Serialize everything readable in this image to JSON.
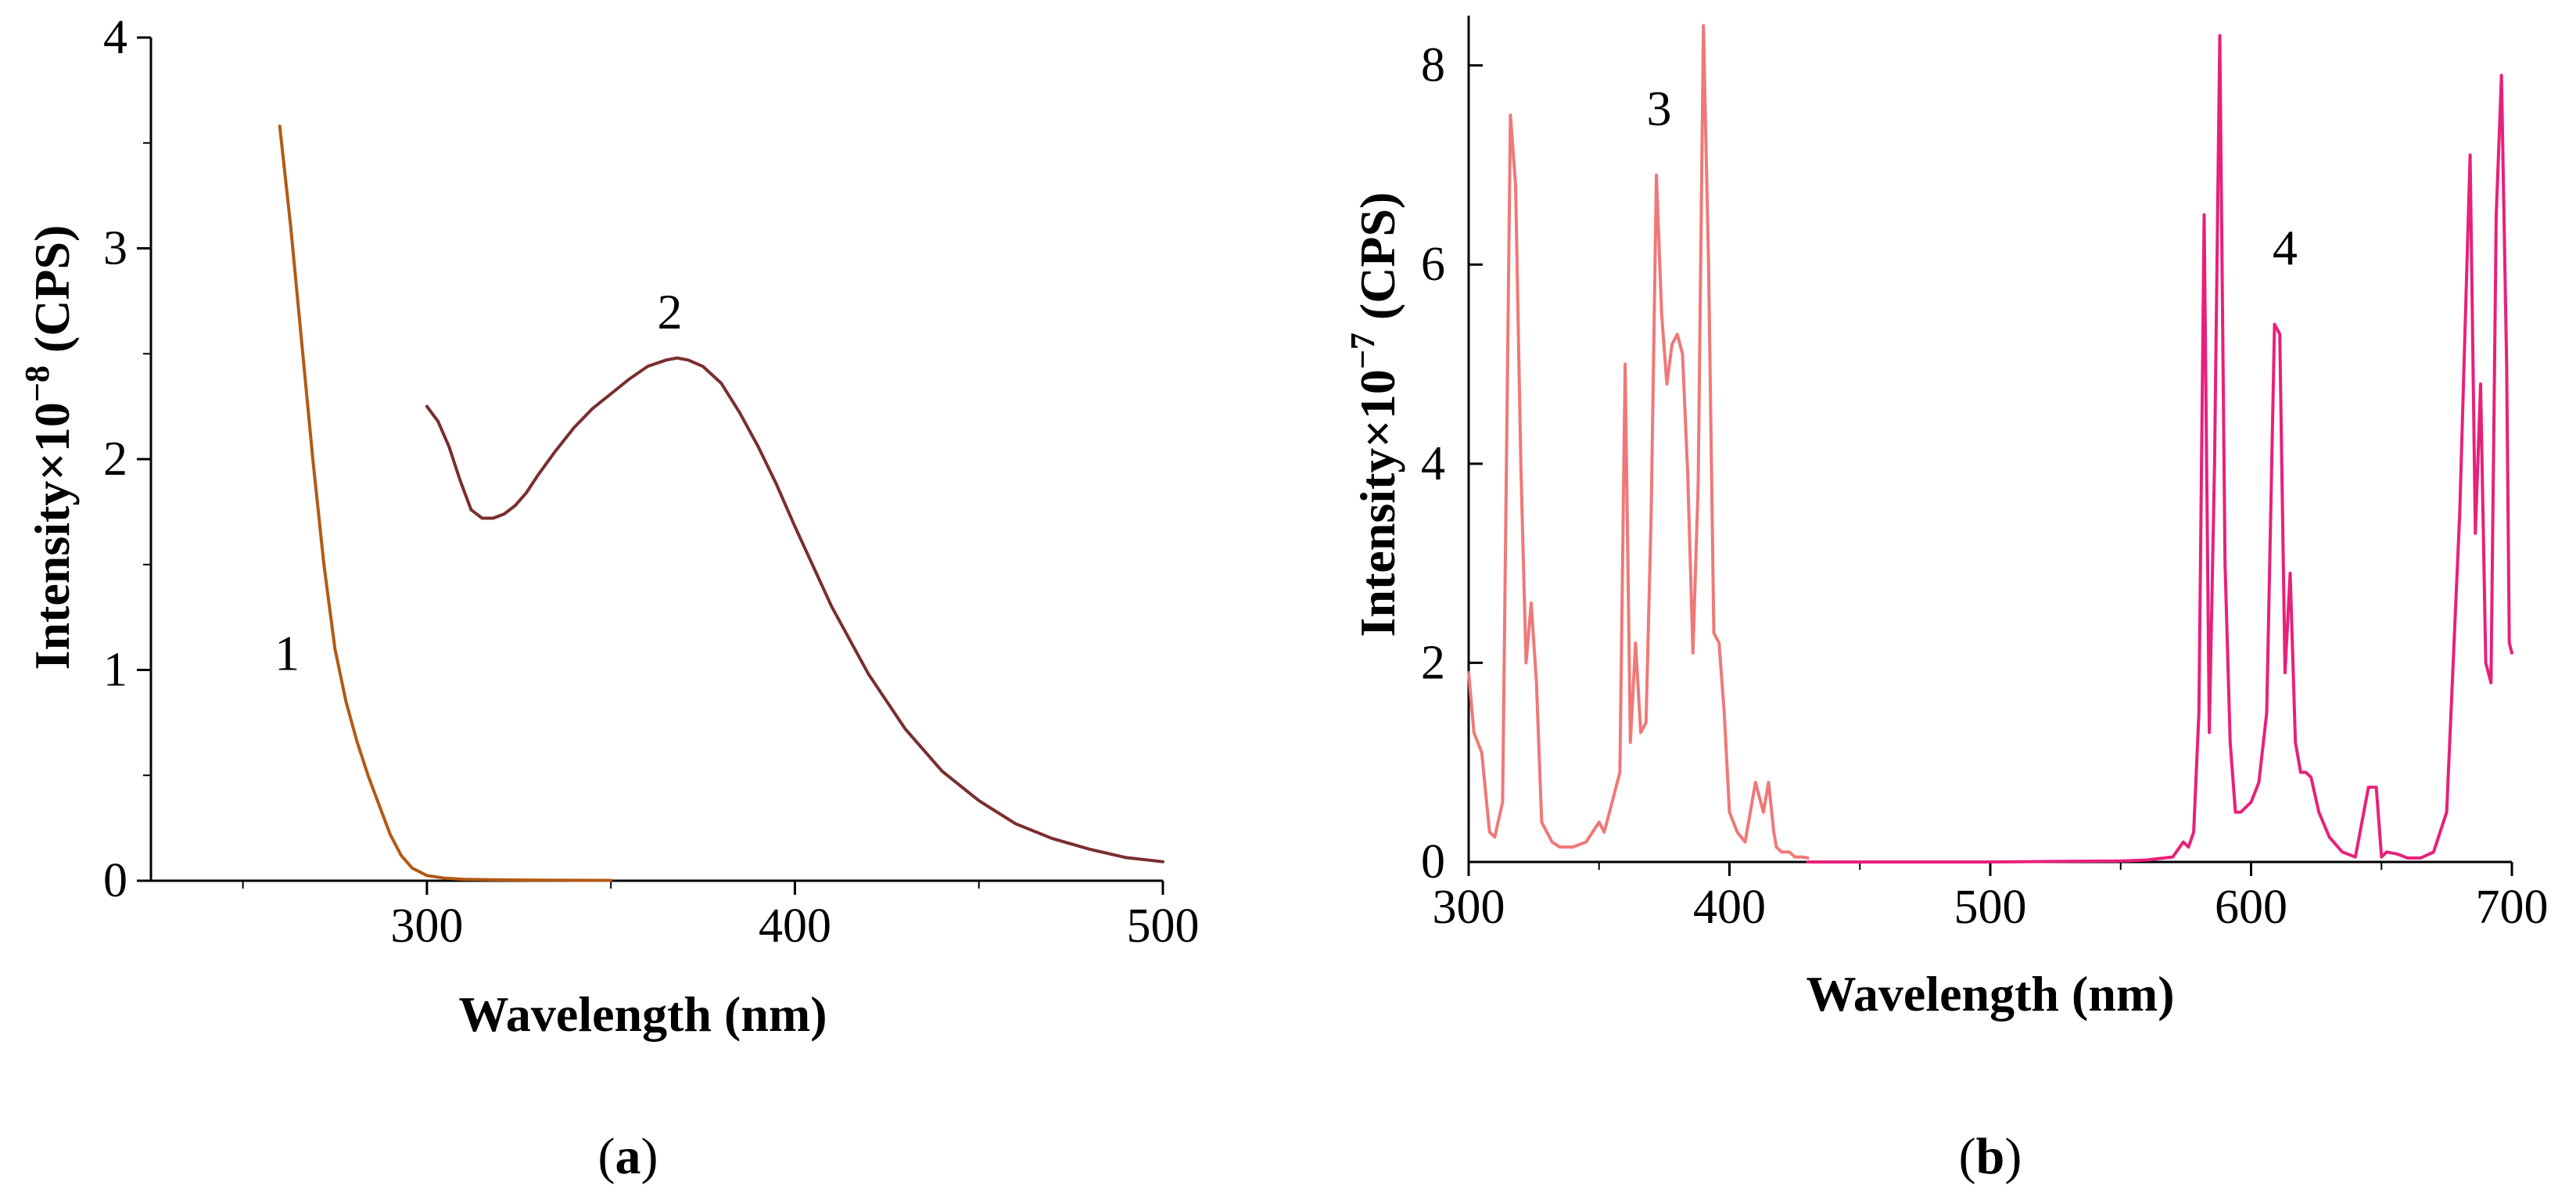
{
  "chart_data": [
    {
      "type": "line",
      "panel": "a",
      "panel_label": "a",
      "xlabel": "Wavelength (nm)",
      "ylabel_prefix": "Intensity×10",
      "ylabel_exp": "−8",
      "ylabel_suffix": " (CPS)",
      "xlim": [
        225,
        500
      ],
      "ylim": [
        0,
        4
      ],
      "xticks": [
        300,
        400,
        500
      ],
      "yticks": [
        0,
        1,
        2,
        3,
        4
      ],
      "series": [
        {
          "name": "1",
          "label": "1",
          "color": "#b35a14",
          "label_at": [
            262,
            1.0
          ],
          "x": [
            260,
            263,
            266,
            269,
            272,
            275,
            278,
            281,
            284,
            287,
            290,
            293,
            296,
            300,
            305,
            310,
            320,
            330,
            350
          ],
          "y": [
            3.58,
            3.1,
            2.55,
            2.0,
            1.5,
            1.1,
            0.85,
            0.66,
            0.5,
            0.36,
            0.22,
            0.12,
            0.06,
            0.025,
            0.012,
            0.007,
            0.004,
            0.003,
            0.002
          ]
        },
        {
          "name": "2",
          "label": "2",
          "color": "#7a2e2e",
          "label_at": [
            366,
            2.62
          ],
          "x": [
            300,
            303,
            306,
            309,
            312,
            315,
            318,
            321,
            324,
            327,
            330,
            335,
            340,
            345,
            350,
            355,
            360,
            365,
            368,
            371,
            375,
            380,
            385,
            390,
            395,
            400,
            410,
            420,
            430,
            440,
            450,
            460,
            470,
            480,
            490,
            500
          ],
          "y": [
            2.25,
            2.18,
            2.06,
            1.9,
            1.76,
            1.72,
            1.72,
            1.74,
            1.78,
            1.84,
            1.92,
            2.04,
            2.15,
            2.24,
            2.31,
            2.38,
            2.44,
            2.47,
            2.48,
            2.47,
            2.44,
            2.36,
            2.22,
            2.06,
            1.88,
            1.68,
            1.3,
            0.98,
            0.72,
            0.52,
            0.38,
            0.27,
            0.2,
            0.15,
            0.11,
            0.09
          ]
        }
      ]
    },
    {
      "type": "line",
      "panel": "b",
      "panel_label": "b",
      "xlabel": "Wavelength (nm)",
      "ylabel_prefix": "Intensity×10",
      "ylabel_exp": "−7",
      "ylabel_suffix": " (CPS)",
      "xlim": [
        300,
        700
      ],
      "ylim": [
        0,
        8.5
      ],
      "xticks": [
        300,
        400,
        500,
        600,
        700
      ],
      "yticks": [
        0,
        2,
        4,
        6,
        8
      ],
      "series": [
        {
          "name": "3",
          "label": "3",
          "color": "#f07878",
          "label_at": [
            373,
            7.4
          ],
          "x": [
            300,
            302,
            305,
            308,
            310,
            313,
            316,
            318,
            320,
            322,
            324,
            326,
            328,
            330,
            332,
            335,
            340,
            345,
            350,
            352,
            355,
            358,
            360,
            362,
            364,
            366,
            368,
            370,
            372,
            374,
            376,
            378,
            380,
            382,
            384,
            386,
            388,
            390,
            392,
            394,
            396,
            398,
            400,
            403,
            406,
            410,
            413,
            415,
            417,
            418,
            420,
            423,
            425,
            428,
            430
          ],
          "y": [
            1.9,
            1.3,
            1.1,
            0.3,
            0.25,
            0.6,
            7.5,
            6.8,
            4.0,
            2.0,
            2.6,
            1.8,
            0.4,
            0.3,
            0.2,
            0.15,
            0.15,
            0.2,
            0.4,
            0.3,
            0.6,
            0.9,
            5.0,
            1.2,
            2.2,
            1.3,
            1.4,
            3.5,
            6.9,
            5.5,
            4.8,
            5.2,
            5.3,
            5.1,
            3.9,
            2.1,
            3.8,
            8.4,
            6.0,
            2.3,
            2.2,
            1.5,
            0.5,
            0.3,
            0.2,
            0.8,
            0.5,
            0.8,
            0.3,
            0.15,
            0.1,
            0.1,
            0.05,
            0.05,
            0.04
          ]
        },
        {
          "name": "4",
          "label": "4",
          "color": "#e8207a",
          "label_at": [
            613,
            6.0
          ],
          "x": [
            430,
            450,
            500,
            550,
            560,
            570,
            574,
            576,
            578,
            580,
            582,
            584,
            586,
            588,
            590,
            592,
            594,
            596,
            598,
            600,
            603,
            606,
            609,
            611,
            613,
            615,
            617,
            619,
            621,
            623,
            626,
            630,
            635,
            640,
            645,
            648,
            650,
            652,
            656,
            660,
            665,
            670,
            675,
            680,
            684,
            686,
            688,
            690,
            692,
            694,
            696,
            698,
            699,
            700
          ],
          "y": [
            0.0,
            0.0,
            0.0,
            0.01,
            0.02,
            0.05,
            0.2,
            0.15,
            0.3,
            1.5,
            6.5,
            1.3,
            4.0,
            8.3,
            3.0,
            1.2,
            0.5,
            0.5,
            0.55,
            0.6,
            0.8,
            1.5,
            5.4,
            5.3,
            1.9,
            2.9,
            1.2,
            0.9,
            0.9,
            0.85,
            0.5,
            0.25,
            0.1,
            0.05,
            0.75,
            0.75,
            0.05,
            0.1,
            0.08,
            0.04,
            0.04,
            0.1,
            0.5,
            3.5,
            7.1,
            3.3,
            4.8,
            2.0,
            1.8,
            6.5,
            7.9,
            5.0,
            2.2,
            2.1
          ]
        }
      ]
    }
  ]
}
